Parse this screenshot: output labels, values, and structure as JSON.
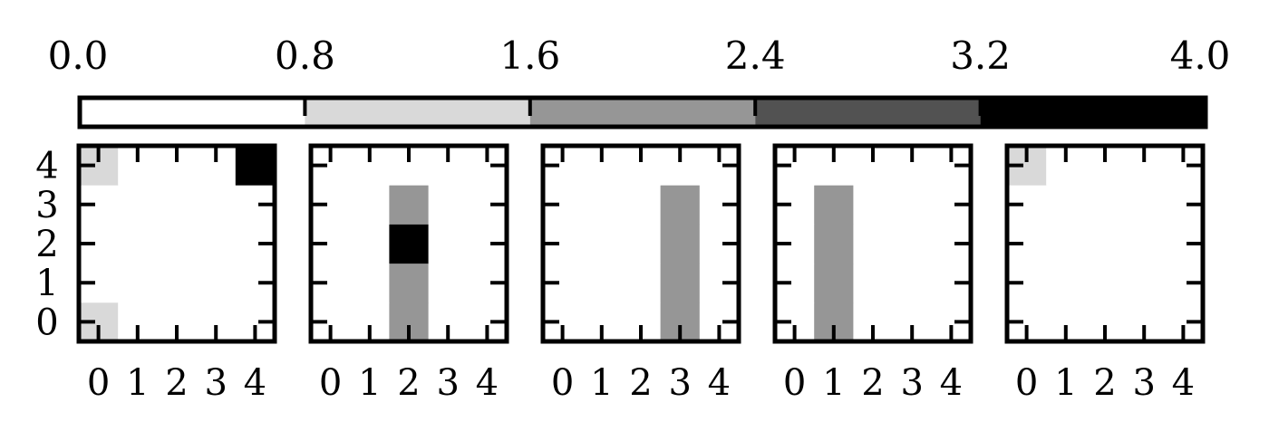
{
  "chart_data": {
    "type": "heatmap",
    "colorbar": {
      "ticks": [
        "0.0",
        "0.8",
        "1.6",
        "2.4",
        "3.2",
        "4.0"
      ],
      "range": [
        0,
        4
      ],
      "bins": [
        {
          "min": 0.0,
          "max": 0.8,
          "color": "#ffffff"
        },
        {
          "min": 0.8,
          "max": 1.6,
          "color": "#d9d9d9"
        },
        {
          "min": 1.6,
          "max": 2.4,
          "color": "#969696"
        },
        {
          "min": 2.4,
          "max": 3.2,
          "color": "#525252"
        },
        {
          "min": 3.2,
          "max": 4.0,
          "color": "#000000"
        }
      ],
      "placement": "top"
    },
    "x_ticks": [
      "0",
      "1",
      "2",
      "3",
      "4"
    ],
    "y_ticks": [
      "0",
      "1",
      "2",
      "3",
      "4"
    ],
    "grid": false,
    "panels": [
      {
        "grid": [
          [
            1,
            0,
            0,
            0,
            0
          ],
          [
            0,
            0,
            0,
            0,
            0
          ],
          [
            0,
            0,
            0,
            0,
            0
          ],
          [
            0,
            0,
            0,
            0,
            0
          ],
          [
            1,
            0,
            0,
            0,
            4
          ]
        ]
      },
      {
        "grid": [
          [
            0,
            0,
            2,
            0,
            0
          ],
          [
            0,
            0,
            2,
            0,
            0
          ],
          [
            0,
            0,
            4,
            0,
            0
          ],
          [
            0,
            0,
            2,
            0,
            0
          ],
          [
            0,
            0,
            0,
            0,
            0
          ]
        ]
      },
      {
        "grid": [
          [
            0,
            0,
            0,
            2,
            0
          ],
          [
            0,
            0,
            0,
            2,
            0
          ],
          [
            0,
            0,
            0,
            2,
            0
          ],
          [
            0,
            0,
            0,
            2,
            0
          ],
          [
            0,
            0,
            0,
            0,
            0
          ]
        ]
      },
      {
        "grid": [
          [
            0,
            2,
            0,
            0,
            0
          ],
          [
            0,
            2,
            0,
            0,
            0
          ],
          [
            0,
            2,
            0,
            0,
            0
          ],
          [
            0,
            2,
            0,
            0,
            0
          ],
          [
            0,
            0,
            0,
            0,
            0
          ]
        ]
      },
      {
        "grid": [
          [
            0,
            0,
            0,
            0,
            0
          ],
          [
            0,
            0,
            0,
            0,
            0
          ],
          [
            0,
            0,
            0,
            0,
            0
          ],
          [
            0,
            0,
            0,
            0,
            0
          ],
          [
            1,
            0,
            0,
            0,
            0
          ]
        ]
      }
    ]
  }
}
